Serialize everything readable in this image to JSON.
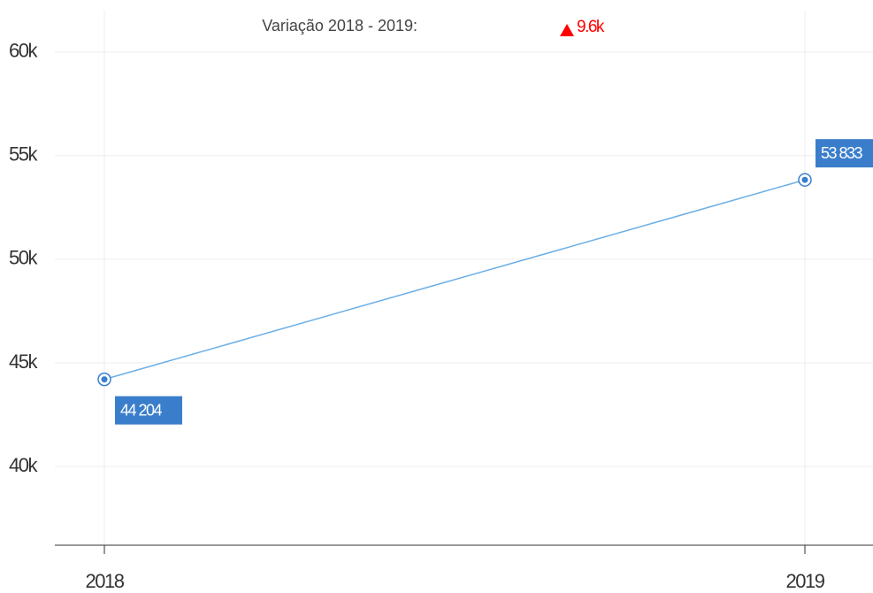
{
  "chart_data": {
    "type": "line",
    "annotation": {
      "text": "Variação 2018 - 2019:",
      "change": "9.6k",
      "change_color": "#ff0000"
    },
    "categories": [
      "2018",
      "2019"
    ],
    "series": [
      {
        "color": "#6aaee6",
        "values": [
          44204,
          53833
        ],
        "value_labels": [
          "44 204",
          "53 833"
        ],
        "label_color": "#3a7ecb"
      }
    ],
    "ylim": [
      36200,
      62000
    ],
    "yticks": [
      {
        "value": 40000,
        "label": "40k"
      },
      {
        "value": 45000,
        "label": "45k"
      },
      {
        "value": 50000,
        "label": "50k"
      },
      {
        "value": 55000,
        "label": "55k"
      },
      {
        "value": 60000,
        "label": "60k"
      }
    ],
    "grid": true
  }
}
